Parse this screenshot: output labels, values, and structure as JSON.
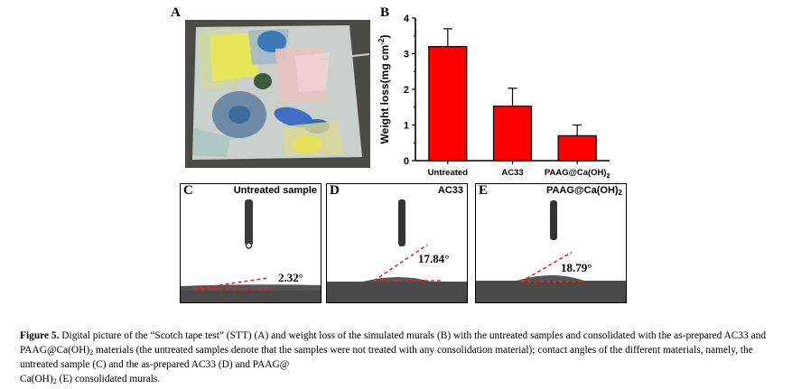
{
  "panels": {
    "a_label": "A",
    "b_label": "B",
    "c_label": "C",
    "d_label": "D",
    "e_label": "E"
  },
  "contact_angle": {
    "c": {
      "sample": "Untreated sample",
      "angle": "2.32°",
      "angle_deg": 2.32
    },
    "d": {
      "sample": "AC33",
      "angle": "17.84°",
      "angle_deg": 17.84
    },
    "e": {
      "sample_main": "PAAG@Ca(OH)",
      "sample_sub": "2",
      "angle": "18.79°",
      "angle_deg": 18.79
    }
  },
  "chart_data": {
    "type": "bar",
    "categories": [
      "Untreated",
      "AC33",
      "PAAG@Ca(OH)2"
    ],
    "values": [
      3.2,
      1.53,
      0.7
    ],
    "errors": [
      0.5,
      0.5,
      0.3
    ],
    "ylabel": "Weight loss(mg cm-2)",
    "ylim": [
      0,
      4
    ],
    "yticks": [
      "0",
      "1",
      "2",
      "3",
      "4"
    ],
    "bar_color": "#ff0000",
    "grid": false
  },
  "caption": {
    "label": "Figure 5.",
    "t1": " Digital picture of the “Scotch tape test” (STT) (A) and weight loss of the simulated murals (B) with the untreated samples and consolidated with the as-prepared AC33 and PAAG@Ca(OH)",
    "sub1": "2",
    "t2": " materials (the untreated samples denote that the samples were not treated with any consolidation material); contact angles of the different materials, namely, the untreated sample (C) and the as-prepared AC33 (D) and PAAG@",
    "t3": "Ca(OH)",
    "sub2": "2",
    "t4": " (E) consolidated murals."
  }
}
